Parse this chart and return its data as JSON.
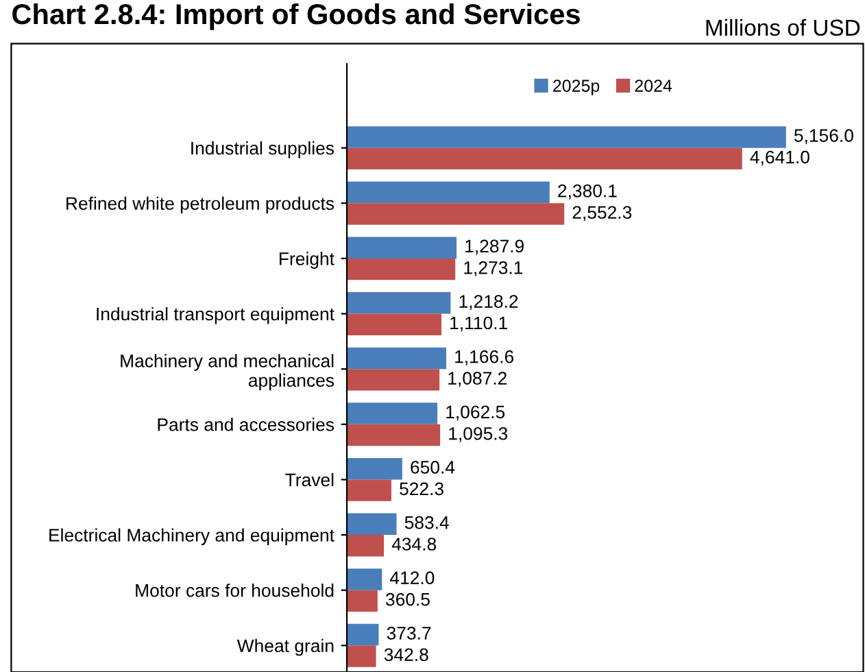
{
  "chart_data": {
    "type": "bar",
    "orientation": "horizontal",
    "title": "Chart 2.8.4: Import of Goods and Services",
    "subtitle": "Millions of USD",
    "categories": [
      "Industrial supplies",
      "Refined white petroleum products",
      "Freight",
      "Industrial transport equipment",
      "Machinery and mechanical\nappliances",
      "Parts and accessories",
      "Travel",
      "Electrical Machinery and equipment",
      "Motor cars for household",
      "Wheat grain"
    ],
    "series": [
      {
        "name": "2025p",
        "color": "#4a7ebb",
        "values": [
          5156.0,
          2380.1,
          1287.9,
          1218.2,
          1166.6,
          1062.5,
          650.4,
          583.4,
          412.0,
          373.7
        ],
        "value_labels": [
          "5,156.0",
          "2,380.1",
          "1,287.9",
          "1,218.2",
          "1,166.6",
          "1,062.5",
          "650.4",
          "583.4",
          "412.0",
          "373.7"
        ]
      },
      {
        "name": "2024",
        "color": "#c0504d",
        "values": [
          4641.0,
          2552.3,
          1273.1,
          1110.1,
          1087.2,
          1095.3,
          522.3,
          434.8,
          360.5,
          342.8
        ],
        "value_labels": [
          "4,641.0",
          "2,552.3",
          "1,273.1",
          "1,110.1",
          "1,087.2",
          "1,095.3",
          "522.3",
          "434.8",
          "360.5",
          "342.8"
        ]
      }
    ],
    "legend": "top",
    "grid": false
  }
}
